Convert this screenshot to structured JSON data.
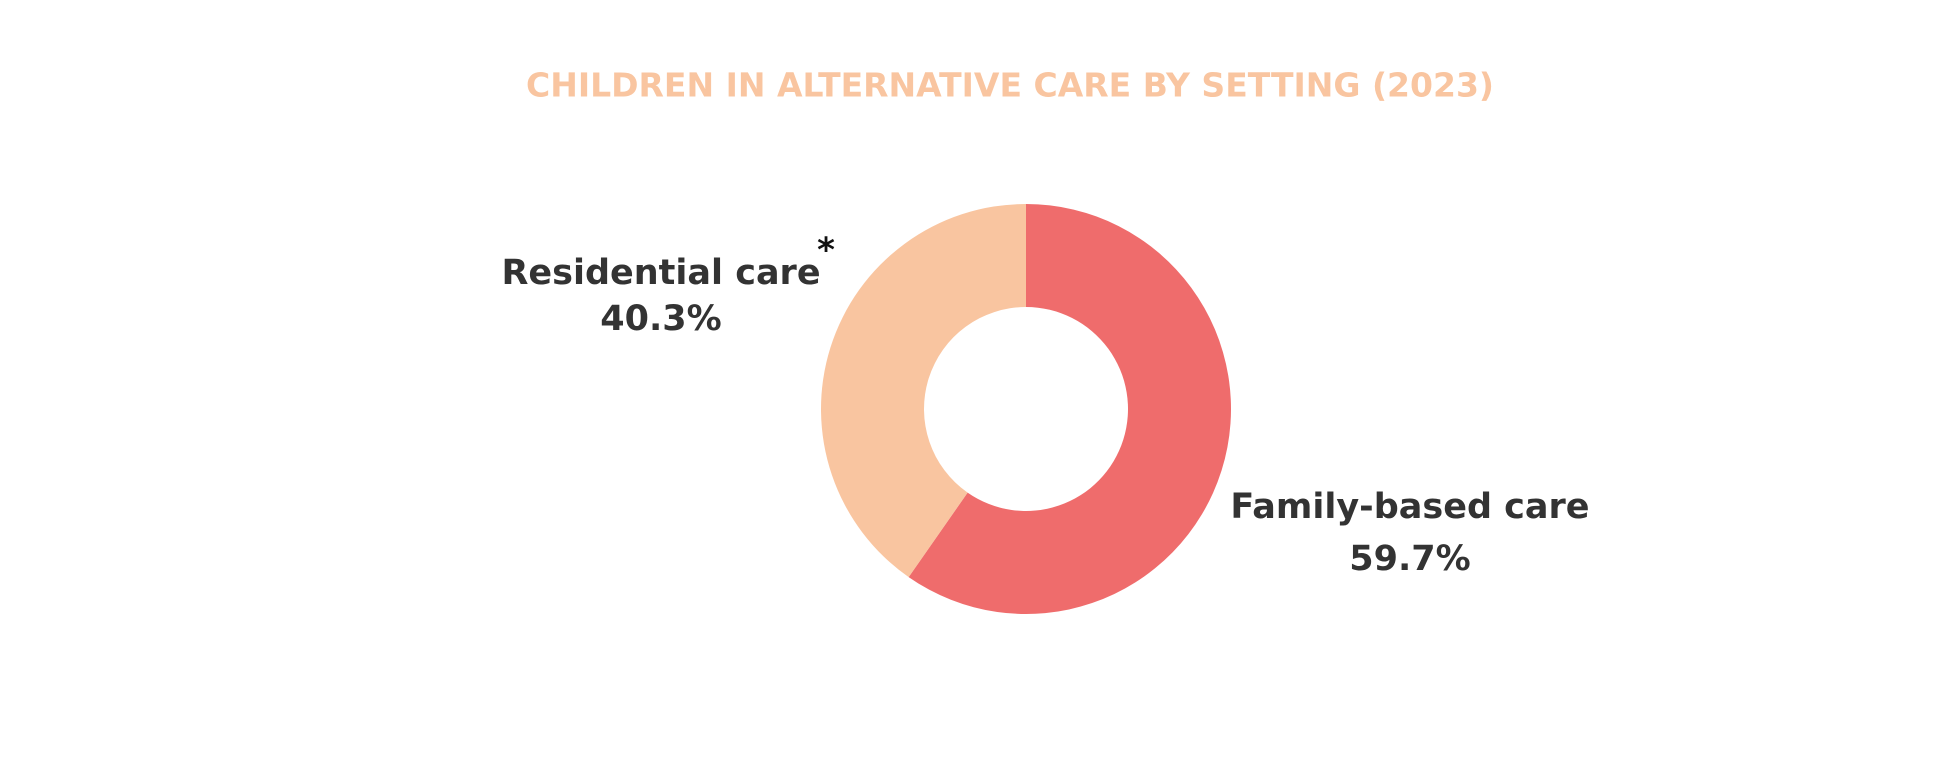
{
  "chart_data": {
    "type": "donut",
    "title": "CHILDREN IN ALTERNATIVE CARE BY SETTING (2023)",
    "categories": [
      "Family-based care",
      "Residential care"
    ],
    "values": [
      59.7,
      40.3
    ],
    "value_labels": [
      "59.7%",
      "40.3%"
    ],
    "colors": [
      "#ef6c6c",
      "#f9c5a0"
    ],
    "annotation": "*"
  }
}
